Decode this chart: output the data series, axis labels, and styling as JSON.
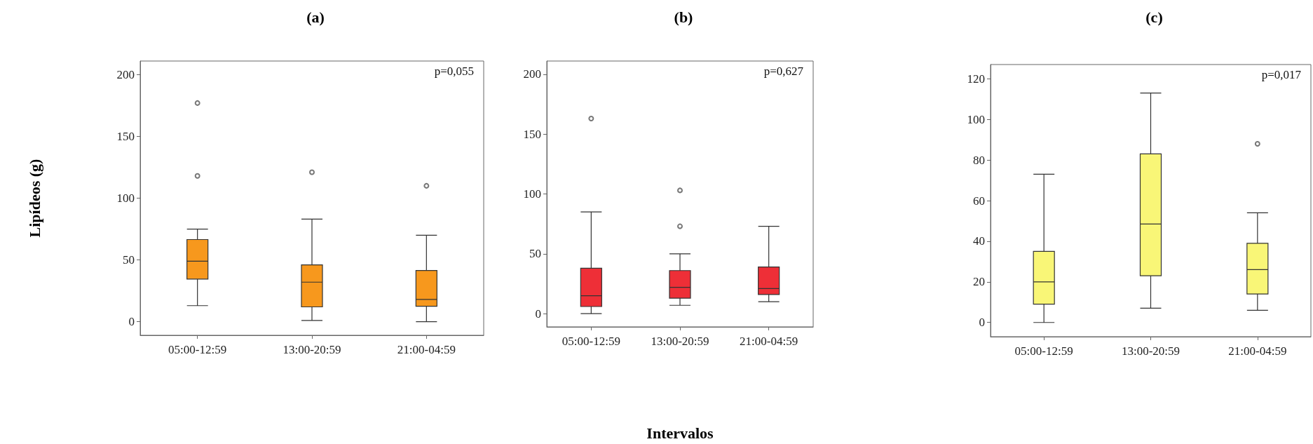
{
  "chart_data": [
    {
      "type": "box",
      "title": "(a)",
      "ylabel": "Lipídeos (g)",
      "categories": [
        "05:00-12:59",
        "13:00-20:59",
        "21:00-04:59"
      ],
      "ylim": [
        -11,
        211
      ],
      "yticks": [
        0,
        50,
        100,
        150,
        200
      ],
      "grid": false,
      "marker": "circle",
      "annotations": [
        "p=0,055"
      ],
      "series": [
        {
          "color": "#f7981d",
          "boxes": [
            {
              "low": 13,
              "q1": 34.5,
              "median": 49,
              "q3": 66.5,
              "high": 75,
              "outliers": [
                118,
                177
              ]
            },
            {
              "low": 1,
              "q1": 12,
              "median": 32,
              "q3": 46,
              "high": 83,
              "outliers": [
                121
              ]
            },
            {
              "low": 0,
              "q1": 12.5,
              "median": 18,
              "q3": 41.5,
              "high": 70,
              "outliers": [
                110
              ]
            }
          ]
        }
      ]
    },
    {
      "type": "box",
      "title": "(b)",
      "xlabel": "Intervalos",
      "categories": [
        "05:00-12:59",
        "13:00-20:59",
        "21:00-04:59"
      ],
      "ylim": [
        -11,
        211
      ],
      "yticks": [
        0,
        50,
        100,
        150,
        200
      ],
      "grid": false,
      "marker": "circle",
      "annotations": [
        "p=0,627"
      ],
      "series": [
        {
          "color": "#ee2f37",
          "boxes": [
            {
              "low": 0,
              "q1": 6,
              "median": 15,
              "q3": 38,
              "high": 85,
              "outliers": [
                163
              ]
            },
            {
              "low": 7,
              "q1": 13,
              "median": 22,
              "q3": 36,
              "high": 50,
              "outliers": [
                73,
                103
              ]
            },
            {
              "low": 10,
              "q1": 16,
              "median": 21,
              "q3": 39,
              "high": 73
            }
          ]
        }
      ]
    },
    {
      "type": "box",
      "title": "(c)",
      "categories": [
        "05:00-12:59",
        "13:00-20:59",
        "21:00-04:59"
      ],
      "ylim": [
        -7,
        127
      ],
      "yticks": [
        0,
        20,
        40,
        60,
        80,
        100,
        120
      ],
      "grid": false,
      "marker": "circle",
      "annotations": [
        "p=0,017"
      ],
      "series": [
        {
          "color": "#f9f677",
          "boxes": [
            {
              "low": 0,
              "q1": 9,
              "median": 20,
              "q3": 35,
              "high": 73
            },
            {
              "low": 7,
              "q1": 23,
              "median": 48.5,
              "q3": 83,
              "high": 113
            },
            {
              "low": 6,
              "q1": 14,
              "median": 26,
              "q3": 39,
              "high": 54,
              "outliers": [
                88
              ]
            }
          ]
        }
      ]
    }
  ]
}
